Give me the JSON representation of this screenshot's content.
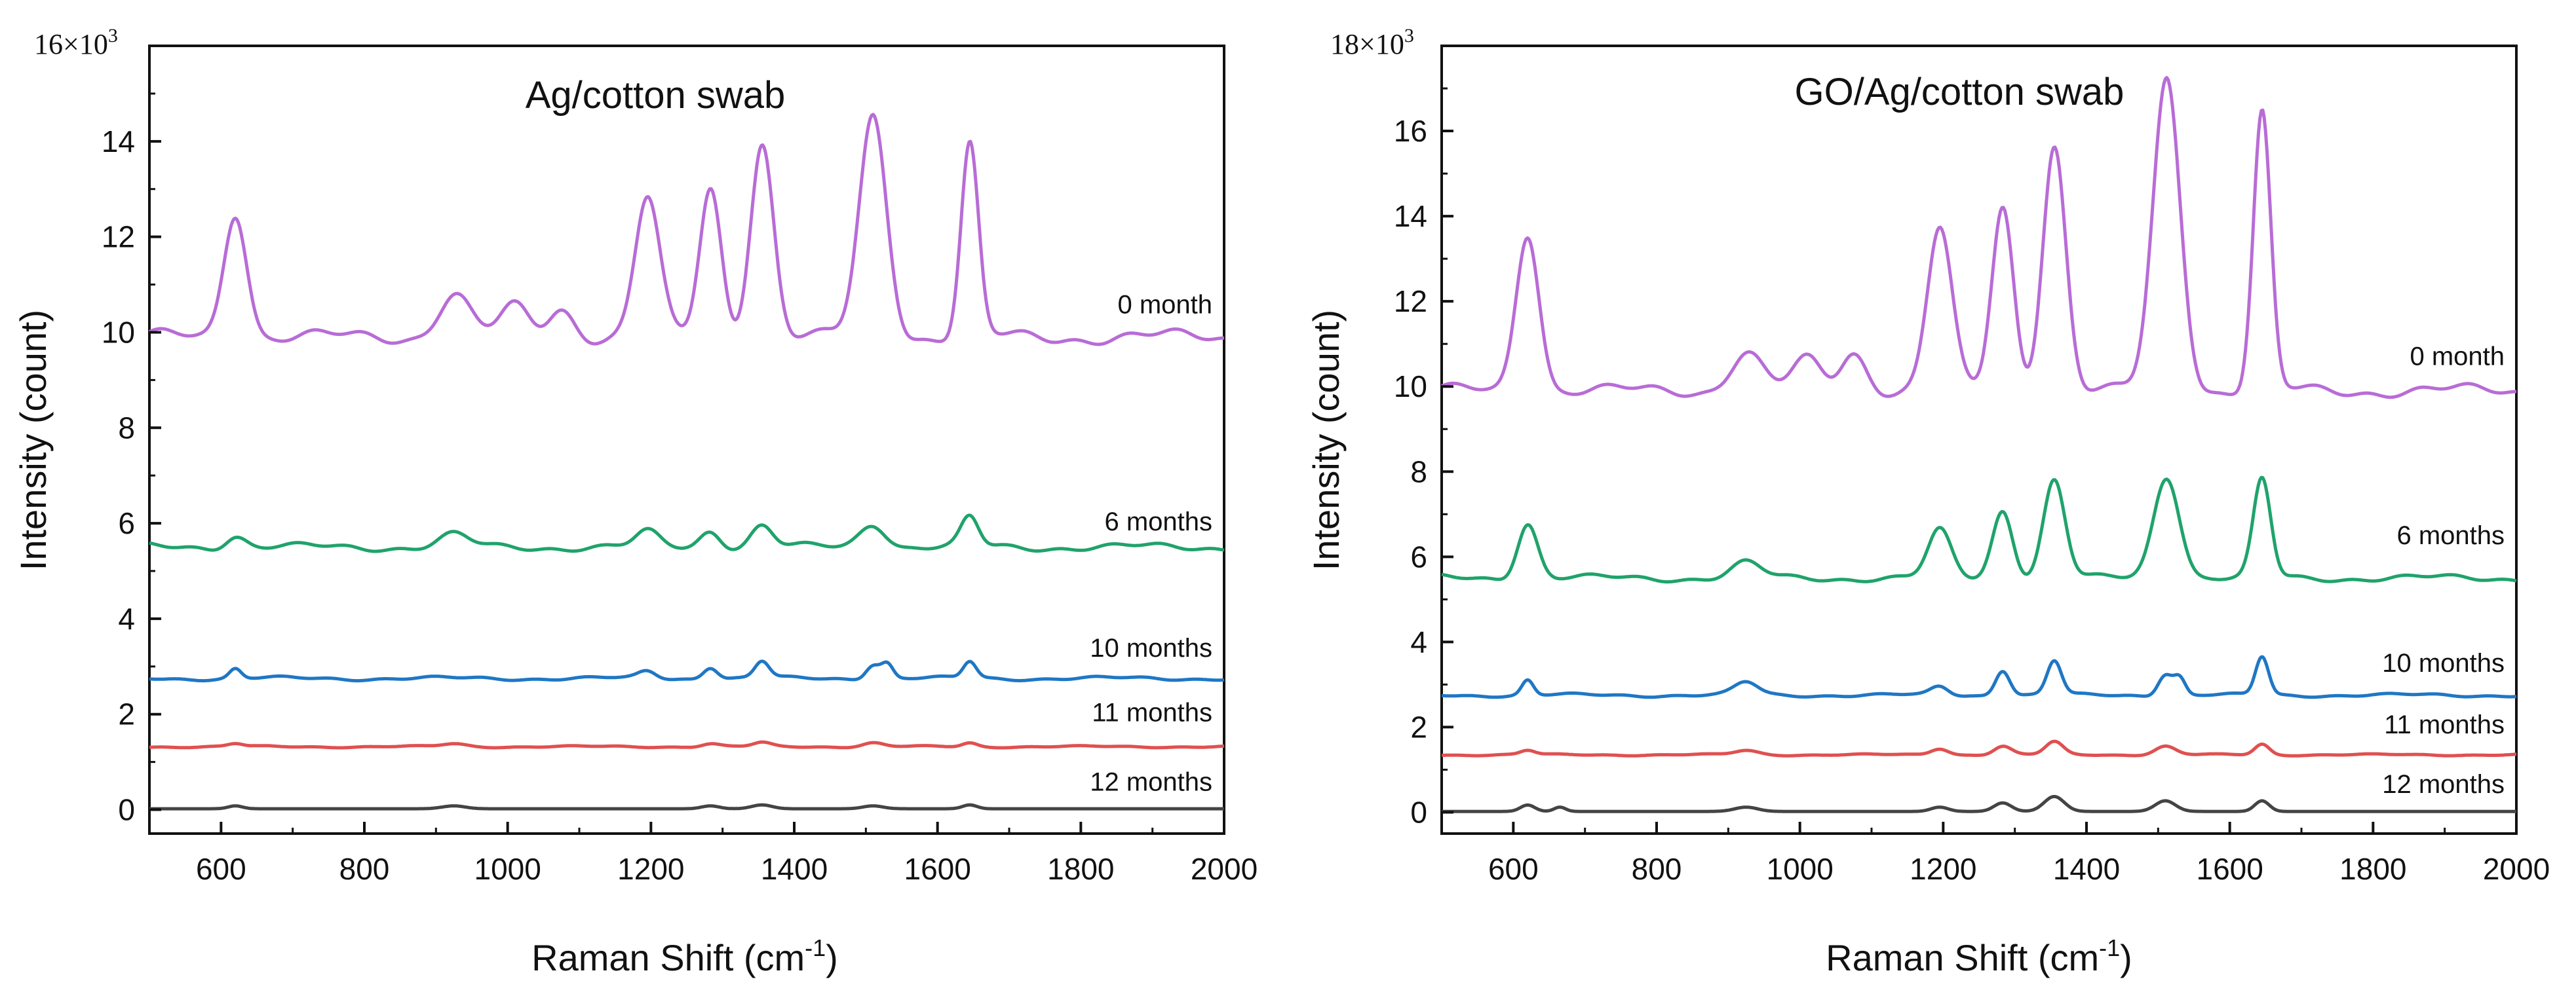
{
  "chart_data": [
    {
      "type": "line",
      "title": "Ag/cotton swab",
      "xlabel_main": "Raman Shift (cm",
      "xlabel_sup": "-1",
      "xlabel_end": ")",
      "ylabel": "Intensity (count)",
      "y_multiplier_base": "16×10",
      "y_multiplier_exp": "3",
      "xlim": [
        500,
        2000
      ],
      "ylim": [
        -0.5,
        16
      ],
      "xticks": [
        600,
        800,
        1000,
        1200,
        1400,
        1600,
        1800,
        2000
      ],
      "yticks": [
        0,
        2,
        4,
        6,
        8,
        10,
        12,
        14
      ],
      "legend_placement": "inline labels at right end of each trace",
      "grid": false,
      "series": [
        {
          "name": "0 month",
          "color": "#b86cd6",
          "baseline": 9.9,
          "label_y": 10.4,
          "peaks": [
            [
              620,
              2.65,
              16
            ],
            [
              925,
              0.9,
              22
            ],
            [
              1010,
              0.6,
              20
            ],
            [
              1075,
              0.6,
              18
            ],
            [
              1195,
              2.9,
              17
            ],
            [
              1283,
              3.1,
              15
            ],
            [
              1355,
              4.1,
              16
            ],
            [
              1510,
              4.6,
              19
            ],
            [
              1645,
              4.0,
              12
            ]
          ]
        },
        {
          "name": "6 months",
          "color": "#1fa36b",
          "baseline": 5.5,
          "label_y": 5.85,
          "peaks": [
            [
              620,
              0.25,
              14
            ],
            [
              925,
              0.25,
              20
            ],
            [
              1195,
              0.3,
              16
            ],
            [
              1283,
              0.35,
              14
            ],
            [
              1355,
              0.45,
              15
            ],
            [
              1510,
              0.5,
              18
            ],
            [
              1645,
              0.6,
              12
            ]
          ]
        },
        {
          "name": "10 months",
          "color": "#1f77c4",
          "baseline": 2.75,
          "label_y": 3.2,
          "peaks": [
            [
              620,
              0.2,
              8
            ],
            [
              1195,
              0.15,
              12
            ],
            [
              1283,
              0.25,
              10
            ],
            [
              1355,
              0.35,
              10
            ],
            [
              1510,
              0.3,
              10
            ],
            [
              1530,
              0.3,
              8
            ],
            [
              1645,
              0.35,
              9
            ]
          ]
        },
        {
          "name": "11 months",
          "color": "#e05050",
          "baseline": 1.32,
          "label_y": 1.85,
          "peaks": [
            [
              620,
              0.06,
              10
            ],
            [
              925,
              0.06,
              16
            ],
            [
              1283,
              0.06,
              12
            ],
            [
              1355,
              0.08,
              12
            ],
            [
              1510,
              0.08,
              14
            ],
            [
              1645,
              0.08,
              10
            ]
          ]
        },
        {
          "name": "12 months",
          "color": "#444444",
          "baseline": 0.02,
          "label_y": 0.4,
          "peaks": [
            [
              620,
              0.06,
              10
            ],
            [
              925,
              0.06,
              16
            ],
            [
              1283,
              0.06,
              12
            ],
            [
              1355,
              0.08,
              14
            ],
            [
              1510,
              0.06,
              14
            ],
            [
              1645,
              0.08,
              10
            ]
          ]
        }
      ]
    },
    {
      "type": "line",
      "title": "GO/Ag/cotton swab",
      "xlabel_main": "Raman Shift (cm",
      "xlabel_sup": "-1",
      "xlabel_end": ")",
      "ylabel": "Intensity (count)",
      "y_multiplier_base": "18×10",
      "y_multiplier_exp": "3",
      "xlim": [
        500,
        2000
      ],
      "ylim": [
        -0.5,
        18
      ],
      "xticks": [
        600,
        800,
        1000,
        1200,
        1400,
        1600,
        1800,
        2000
      ],
      "yticks": [
        0,
        2,
        4,
        6,
        8,
        10,
        12,
        14,
        16
      ],
      "legend_placement": "inline labels at right end of each trace",
      "grid": false,
      "series": [
        {
          "name": "0 month",
          "color": "#b86cd6",
          "baseline": 9.9,
          "label_y": 10.5,
          "peaks": [
            [
              620,
              3.75,
              16
            ],
            [
              925,
              0.9,
              22
            ],
            [
              1010,
              0.7,
              20
            ],
            [
              1075,
              0.9,
              18
            ],
            [
              1195,
              3.8,
              17
            ],
            [
              1283,
              4.3,
              15
            ],
            [
              1355,
              5.8,
              16
            ],
            [
              1512,
              7.3,
              19
            ],
            [
              1645,
              6.5,
              12
            ]
          ]
        },
        {
          "name": "6 months",
          "color": "#1fa36b",
          "baseline": 5.5,
          "label_y": 6.3,
          "peaks": [
            [
              620,
              1.3,
              14
            ],
            [
              925,
              0.35,
              20
            ],
            [
              1195,
              1.1,
              16
            ],
            [
              1283,
              1.6,
              14
            ],
            [
              1355,
              2.3,
              15
            ],
            [
              1512,
              2.4,
              18
            ],
            [
              1645,
              2.3,
              12
            ]
          ]
        },
        {
          "name": "10 months",
          "color": "#1f77c4",
          "baseline": 2.75,
          "label_y": 3.3,
          "peaks": [
            [
              620,
              0.35,
              8
            ],
            [
              925,
              0.3,
              16
            ],
            [
              1195,
              0.2,
              12
            ],
            [
              1283,
              0.6,
              10
            ],
            [
              1355,
              0.8,
              10
            ],
            [
              1510,
              0.5,
              10
            ],
            [
              1530,
              0.4,
              8
            ],
            [
              1645,
              0.9,
              9
            ]
          ]
        },
        {
          "name": "11 months",
          "color": "#e05050",
          "baseline": 1.35,
          "label_y": 1.85,
          "peaks": [
            [
              620,
              0.1,
              10
            ],
            [
              925,
              0.1,
              16
            ],
            [
              1195,
              0.15,
              12
            ],
            [
              1283,
              0.2,
              12
            ],
            [
              1355,
              0.3,
              12
            ],
            [
              1510,
              0.2,
              14
            ],
            [
              1645,
              0.25,
              10
            ]
          ]
        },
        {
          "name": "12 months",
          "color": "#444444",
          "baseline": 0.02,
          "label_y": 0.45,
          "peaks": [
            [
              620,
              0.15,
              10
            ],
            [
              665,
              0.1,
              8
            ],
            [
              925,
              0.1,
              16
            ],
            [
              1195,
              0.1,
              12
            ],
            [
              1283,
              0.2,
              12
            ],
            [
              1355,
              0.35,
              14
            ],
            [
              1510,
              0.25,
              14
            ],
            [
              1645,
              0.25,
              10
            ]
          ]
        }
      ]
    }
  ]
}
